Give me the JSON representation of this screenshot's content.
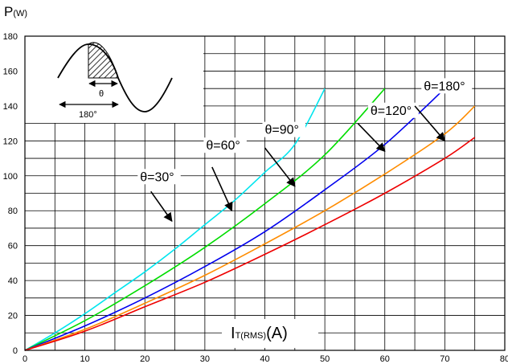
{
  "chart_data": {
    "type": "line",
    "y_unit_main": "P",
    "y_unit_sub": "(W)",
    "x_unit_main": "I",
    "x_unit_sub": "T(RMS)",
    "x_unit_suffix": "(A)",
    "xlim": [
      0,
      80
    ],
    "ylim": [
      0,
      180
    ],
    "x_ticks": [
      "0",
      "10",
      "20",
      "30",
      "40",
      "50",
      "60",
      "70",
      "80"
    ],
    "y_ticks": [
      "0",
      "20",
      "40",
      "60",
      "80",
      "100",
      "120",
      "140",
      "160",
      "180"
    ],
    "grid": true,
    "series": [
      {
        "name": "θ=30°",
        "color": "#00e5ee",
        "x": [
          0,
          5,
          10,
          15,
          20,
          25,
          30,
          35,
          40,
          45,
          50
        ],
        "y": [
          0,
          10,
          21,
          33,
          45,
          58,
          72,
          86,
          102,
          118,
          150
        ]
      },
      {
        "name": "θ=60°",
        "color": "#00dd00",
        "x": [
          0,
          10,
          20,
          30,
          40,
          50,
          60
        ],
        "y": [
          0,
          17,
          37,
          59,
          84,
          112,
          150
        ]
      },
      {
        "name": "θ=90°",
        "color": "#0000ee",
        "x": [
          0,
          10,
          20,
          30,
          40,
          50,
          60,
          70
        ],
        "y": [
          0,
          14,
          30,
          48,
          68,
          92,
          118,
          150
        ]
      },
      {
        "name": "θ=120°",
        "color": "#ff8c00",
        "x": [
          0,
          10,
          20,
          30,
          40,
          50,
          60,
          70,
          75
        ],
        "y": [
          0,
          12,
          27,
          43,
          61,
          80,
          101,
          124,
          140
        ]
      },
      {
        "name": "θ=180°",
        "color": "#ee0000",
        "x": [
          0,
          10,
          20,
          30,
          40,
          50,
          60,
          70,
          75
        ],
        "y": [
          0,
          11,
          25,
          39,
          55,
          72,
          90,
          110,
          122
        ]
      }
    ],
    "annotations": [
      {
        "label": "θ=30°",
        "text_x": 19.2,
        "text_y": 97,
        "arrow_from": [
          21,
          91
        ],
        "arrow_to": [
          24.5,
          74
        ]
      },
      {
        "label": "θ=60°",
        "text_x": 30.2,
        "text_y": 115,
        "arrow_from": [
          31.2,
          105
        ],
        "arrow_to": [
          34.5,
          80
        ]
      },
      {
        "label": "θ=90°",
        "text_x": 40,
        "text_y": 124,
        "arrow_from": [
          40,
          116
        ],
        "arrow_to": [
          45,
          94
        ]
      },
      {
        "label": "θ=120°",
        "text_x": 57.6,
        "text_y": 135,
        "arrow_from": [
          55.5,
          130
        ],
        "arrow_to": [
          60,
          114
        ]
      },
      {
        "label": "θ=180°",
        "text_x": 66.5,
        "text_y": 149,
        "arrow_from": [
          65,
          140
        ],
        "arrow_to": [
          70,
          120
        ]
      }
    ],
    "inset": {
      "theta_label": "θ",
      "period_label": "180°"
    }
  }
}
